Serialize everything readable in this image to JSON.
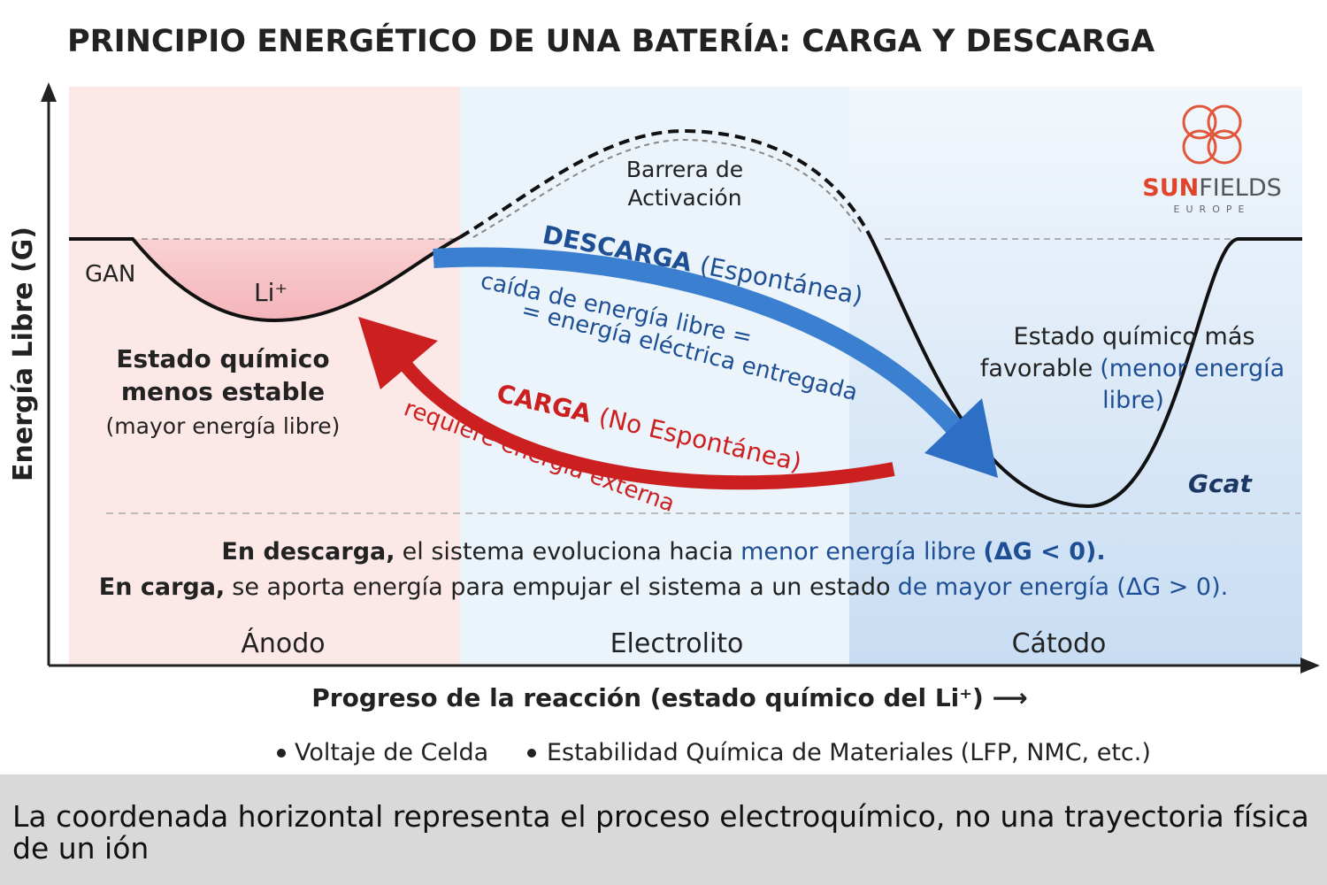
{
  "header": {
    "title": "PRINCIPIO ENERGÉTICO DE UNA BATERÍA: CARGA Y DESCARGA"
  },
  "axes": {
    "y_label": "Energía Libre (G)",
    "x_label": "Progreso de la reacción (estado químico del Li⁺) ⟶"
  },
  "logo": {
    "brand_bold": "SUN",
    "brand": "FIELDS",
    "region": "EUROPE"
  },
  "diagram": {
    "anode_level": "GAN",
    "ion": "Li⁺",
    "anode_state": {
      "line1": "Estado químico",
      "line2": "menos estable",
      "note": "(mayor energía libre)"
    },
    "barrier": {
      "line1": "Barrera de",
      "line2": "Activación"
    },
    "discharge": {
      "title": "DESCARGA",
      "qualifier": "(Espontánea)",
      "line1": "caída de energía libre =",
      "line2": "= energía eléctrica entregada"
    },
    "charge": {
      "title": "CARGA",
      "qualifier": "(No Espontánea)",
      "line1": "requiere energía externa"
    },
    "cathode_state": {
      "line1": "Estado químico más",
      "line2_bold": "favorable",
      "line2": "(menor energía",
      "line3": "libre)"
    },
    "cathode_level": "Gcat"
  },
  "notes": [
    {
      "bold": "En descarga,",
      "text": "el sistema evoluciona hacia",
      "highlight": "menor energía libre",
      "end": "(ΔG < 0)."
    },
    {
      "bold": "En carga,",
      "text": "se aporta energía para empujar el sistema a un estado",
      "highlight": "de mayor energía",
      "end": "(ΔG > 0)."
    }
  ],
  "regions": [
    "Ánodo",
    "Electrolito",
    "Cátodo"
  ],
  "bullets": [
    {
      "bold": "Voltaje de Celda"
    },
    {
      "bold": "Estabilidad Química de Materiales",
      "extra": "(LFP, NMC, etc.)"
    }
  ],
  "caption": "La coordenada horizontal representa el proceso electroquímico, no una trayectoria física de un ión"
}
